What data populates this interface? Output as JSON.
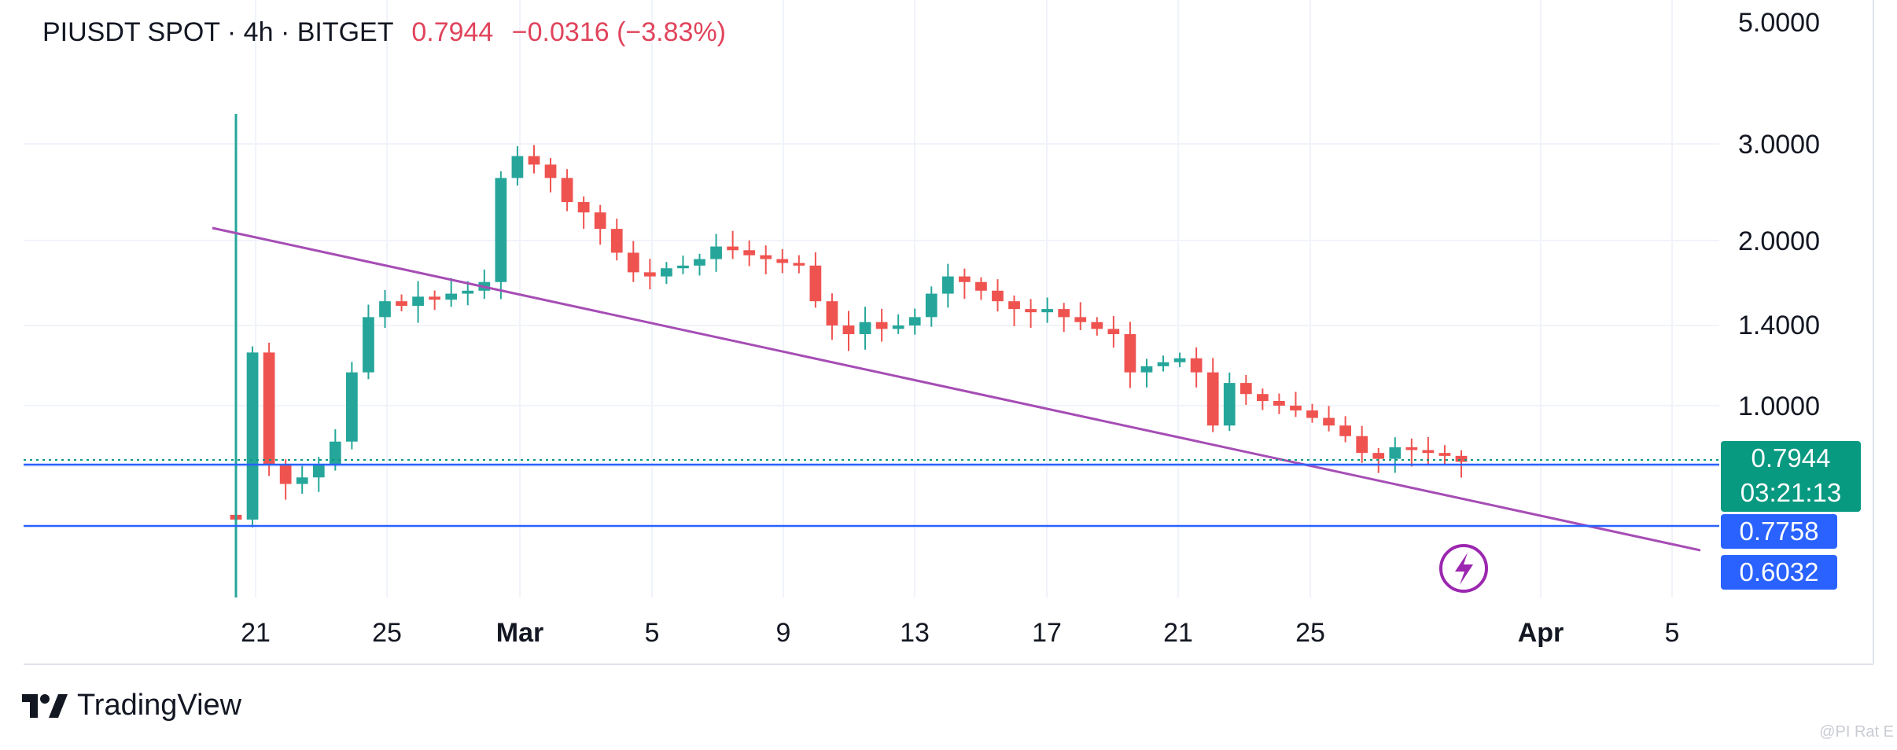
{
  "header": {
    "symbol": "PIUSDT SPOT · 4h · BITGET",
    "last": "0.7944",
    "change": "−0.0316 (−3.83%)"
  },
  "brand": {
    "name": "TradingView",
    "logo_icon": "tradingview-logo-icon"
  },
  "watermark": "@PI Rat E",
  "price_axis": {
    "ticks": [
      "5.0000",
      "3.0000",
      "2.0000",
      "1.4000",
      "1.0000"
    ],
    "current_price": "0.7944",
    "countdown": "03:21:13",
    "level_1": "0.7758",
    "level_2": "0.6032"
  },
  "time_axis": {
    "ticks": [
      "21",
      "25",
      "Mar",
      "5",
      "9",
      "13",
      "17",
      "21",
      "25",
      "Apr",
      "5"
    ]
  },
  "icons": {
    "alert": "lightning-alert-icon"
  },
  "colors": {
    "up": "#26a69a",
    "down": "#ef5350",
    "trendline": "#a64db5",
    "level_line": "#2962ff",
    "current_tag": "#089981",
    "level_tag": "#2962ff",
    "text_neg": "#e0445c"
  },
  "chart_data": {
    "type": "candlestick",
    "title": "PIUSDT SPOT · 4h · BITGET",
    "xlabel": "",
    "ylabel": "",
    "scale": "log",
    "ylim": [
      0.52,
      5.2
    ],
    "x_ticks": [
      "21",
      "25",
      "Mar",
      "5",
      "9",
      "13",
      "17",
      "21",
      "25",
      "Apr",
      "5"
    ],
    "closes": [
      0.62,
      1.25,
      0.78,
      0.72,
      0.74,
      0.78,
      0.86,
      1.15,
      1.45,
      1.55,
      1.52,
      1.58,
      1.56,
      1.6,
      1.62,
      1.68,
      2.6,
      2.85,
      2.75,
      2.6,
      2.35,
      2.25,
      2.1,
      1.9,
      1.75,
      1.72,
      1.78,
      1.8,
      1.85,
      1.95,
      1.92,
      1.88,
      1.85,
      1.82,
      1.8,
      1.55,
      1.4,
      1.35,
      1.42,
      1.38,
      1.4,
      1.45,
      1.6,
      1.72,
      1.68,
      1.62,
      1.55,
      1.5,
      1.48,
      1.5,
      1.45,
      1.42,
      1.38,
      1.35,
      1.15,
      1.18,
      1.2,
      1.22,
      1.15,
      0.92,
      1.1,
      1.05,
      1.02,
      1.0,
      0.98,
      0.95,
      0.92,
      0.88,
      0.82,
      0.8,
      0.84,
      0.83,
      0.82,
      0.81,
      0.79
    ],
    "current": 0.7944,
    "horizontal_levels": [
      0.7758,
      0.6032
    ],
    "trendline": {
      "from": [
        0,
        2.15
      ],
      "to": [
        1,
        0.55
      ]
    },
    "change": -0.0316,
    "change_pct": -3.83
  }
}
